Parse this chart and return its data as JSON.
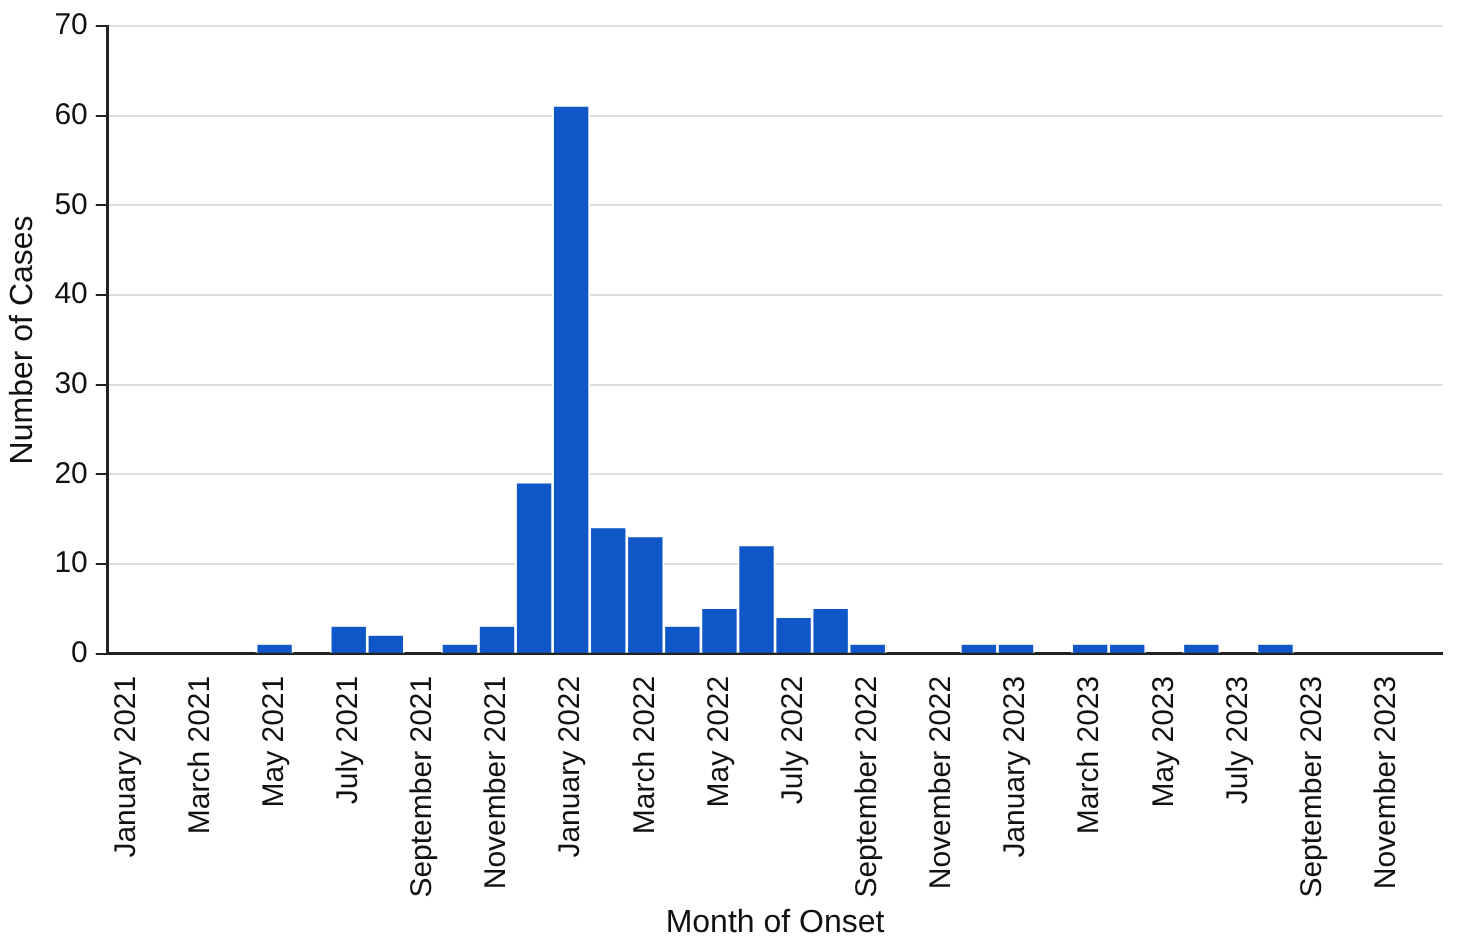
{
  "chart_data": {
    "type": "bar",
    "xlabel": "Month of Onset",
    "ylabel": "Number of Cases",
    "categories": [
      "January 2021",
      null,
      "March 2021",
      null,
      "May 2021",
      null,
      "July 2021",
      null,
      "September 2021",
      null,
      "November 2021",
      null,
      "January 2022",
      null,
      "March 2022",
      null,
      "May 2022",
      null,
      "July 2022",
      null,
      "September 2022",
      null,
      "November 2022",
      null,
      "January 2023",
      null,
      "March 2023",
      null,
      "May 2023",
      null,
      "July 2023",
      null,
      "September 2023",
      null,
      "November 2023",
      null
    ],
    "values": [
      0,
      0,
      0,
      0,
      1,
      0,
      3,
      2,
      0,
      1,
      3,
      19,
      61,
      14,
      13,
      3,
      5,
      12,
      4,
      5,
      1,
      0,
      0,
      1,
      1,
      0,
      1,
      1,
      0,
      1,
      0,
      1,
      0,
      0,
      0,
      0
    ],
    "color": "#0f57c9",
    "ylim": [
      0,
      70
    ],
    "yticks": [
      0,
      10,
      20,
      30,
      40,
      50,
      60,
      70
    ],
    "grid": "y",
    "legend": false
  }
}
